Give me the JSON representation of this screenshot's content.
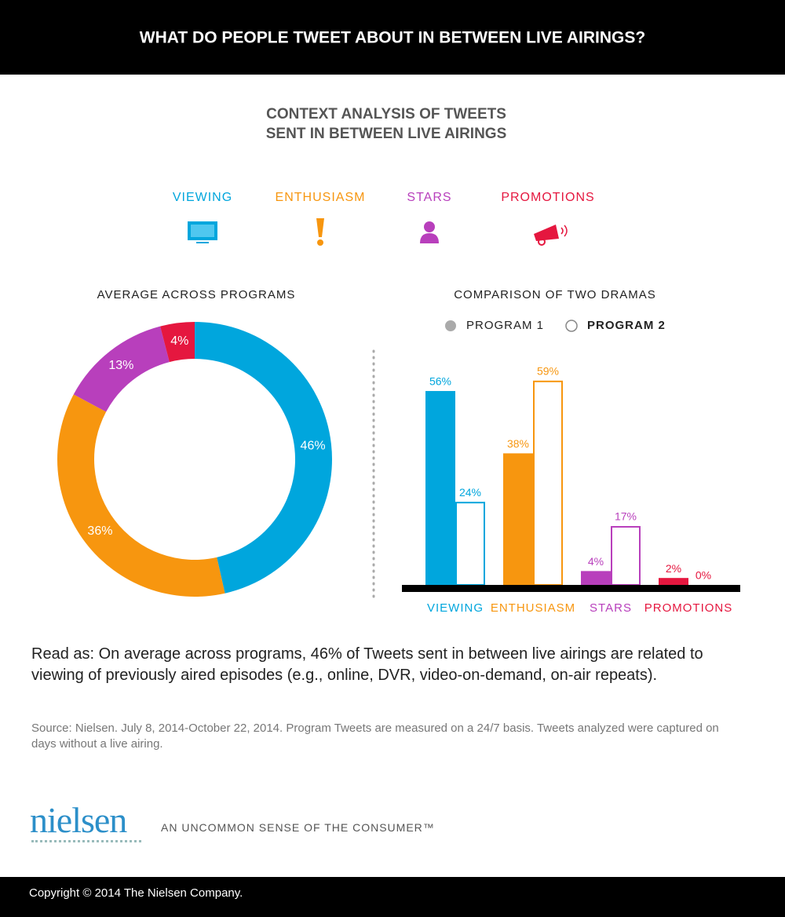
{
  "header": {
    "title": "WHAT DO PEOPLE TWEET ABOUT IN BETWEEN LIVE AIRINGS?"
  },
  "subtitle": [
    "CONTEXT ANALYSIS OF TWEETS",
    "SENT IN BETWEEN LIVE AIRINGS"
  ],
  "chart_data": [
    {
      "type": "donut",
      "title": "AVERAGE ACROSS PROGRAMS",
      "categories": [
        "VIEWING",
        "ENTHUSIASM",
        "STARS",
        "PROMOTIONS"
      ],
      "colors": [
        "#00a6dd",
        "#f7960f",
        "#b83fbc",
        "#e5173f"
      ],
      "values": [
        46,
        36,
        13,
        4
      ],
      "value_labels": [
        "46%",
        "36%",
        "13%",
        "4%"
      ]
    },
    {
      "type": "bar",
      "title": "COMPARISON OF TWO DRAMAS",
      "categories": [
        "VIEWING",
        "ENTHUSIASM",
        "STARS",
        "PROMOTIONS"
      ],
      "colors": [
        "#00a6dd",
        "#f7960f",
        "#b83fbc",
        "#e5173f"
      ],
      "series": [
        {
          "name": "PROGRAM 1",
          "color": "#aaaaaa",
          "filled": true,
          "values": [
            56,
            38,
            4,
            2
          ],
          "value_labels": [
            "56%",
            "38%",
            "4%",
            "2%"
          ]
        },
        {
          "name": "PROGRAM 2",
          "color": "#ffffff",
          "filled": false,
          "values": [
            24,
            59,
            17,
            0
          ],
          "value_labels": [
            "24%",
            "59%",
            "17%",
            "0%"
          ]
        }
      ]
    }
  ],
  "read_as": "Read as: On average across programs, 46% of Tweets sent in between live airings are related to viewing of previously aired episodes (e.g., online, DVR, video-on-demand, on-air repeats).",
  "source": "Source: Nielsen. July 8, 2014-October 22, 2014. Program Tweets are measured on a 24/7 basis. Tweets analyzed were captured on days without a live airing.",
  "footer": {
    "logo": "nielsen",
    "tagline": "AN UNCOMMON SENSE OF THE CONSUMER™",
    "copyright": "Copyright © 2014 The Nielsen Company."
  }
}
